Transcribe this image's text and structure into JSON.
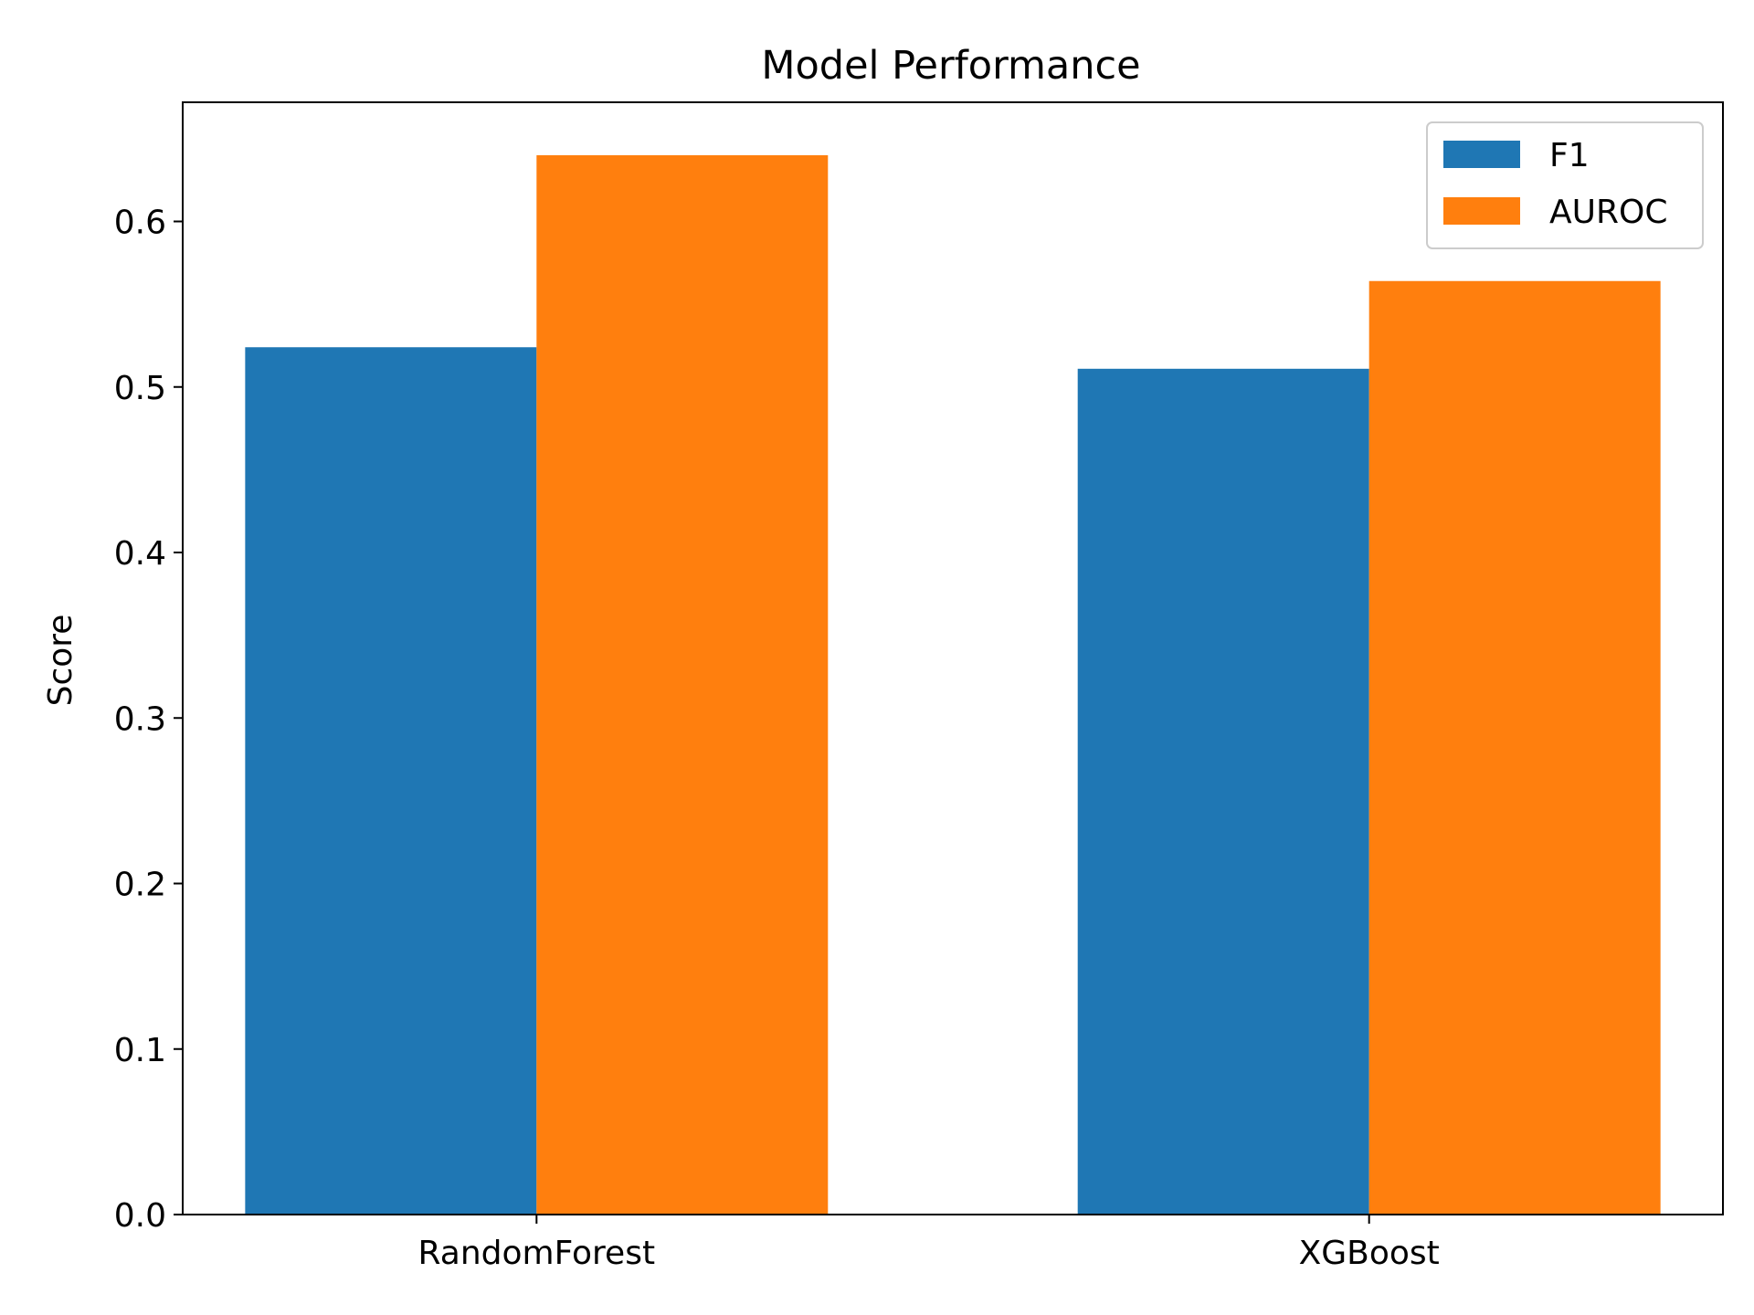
{
  "chart_data": {
    "type": "bar",
    "title": "Model Performance",
    "xlabel": "",
    "ylabel": "Score",
    "categories": [
      "RandomForest",
      "XGBoost"
    ],
    "series": [
      {
        "name": "F1",
        "values": [
          0.524,
          0.511
        ],
        "color": "#1f77b4"
      },
      {
        "name": "AUROC",
        "values": [
          0.64,
          0.564
        ],
        "color": "#ff7f0e"
      }
    ],
    "ylim": [
      0,
      0.672
    ],
    "yticks": [
      0.0,
      0.1,
      0.2,
      0.3,
      0.4,
      0.5,
      0.6
    ],
    "ytick_labels": [
      "0.0",
      "0.1",
      "0.2",
      "0.3",
      "0.4",
      "0.5",
      "0.6"
    ],
    "grid": false,
    "legend_position": "top-right"
  }
}
